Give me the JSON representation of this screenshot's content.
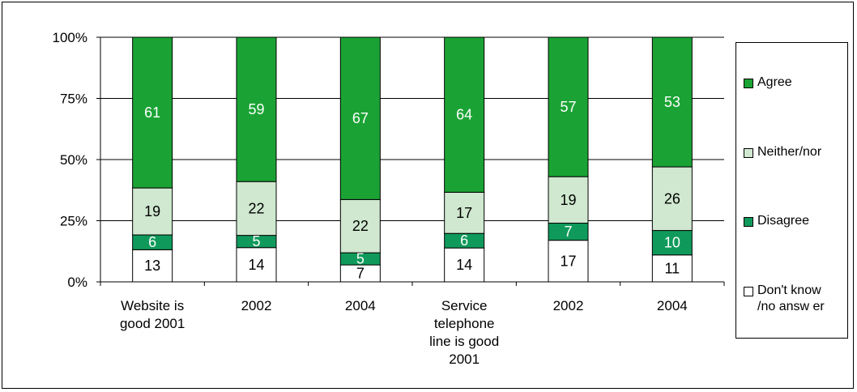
{
  "chart_data": {
    "type": "bar",
    "stacked": true,
    "percent": true,
    "categories": [
      [
        "Website is",
        "good 2001"
      ],
      [
        "2002"
      ],
      [
        "2004"
      ],
      [
        "Service",
        "telephone",
        "line is good",
        "2001"
      ],
      [
        "2002"
      ],
      [
        "2004"
      ]
    ],
    "series": [
      {
        "name": "Don't know /no answ er",
        "color": "#ffffff",
        "label_color": "#000000",
        "values": [
          13,
          14,
          7,
          14,
          17,
          11
        ]
      },
      {
        "name": "Disagree",
        "color": "#0f9a5b",
        "label_color": "#ffffff",
        "values": [
          6,
          5,
          5,
          6,
          7,
          10
        ]
      },
      {
        "name": "Neither/nor",
        "color": "#cfe8cf",
        "label_color": "#000000",
        "values": [
          19,
          22,
          22,
          17,
          19,
          26
        ]
      },
      {
        "name": "Agree",
        "color": "#1aa334",
        "label_color": "#ffffff",
        "values": [
          61,
          59,
          67,
          64,
          57,
          53
        ]
      }
    ],
    "yticks": [
      "0%",
      "25%",
      "50%",
      "75%",
      "100%"
    ],
    "ylim": [
      0,
      100
    ],
    "legend_position": "right",
    "grid": true
  },
  "legend": {
    "items": [
      {
        "label": "Agree",
        "color": "#1aa334"
      },
      {
        "label": "Neither/nor",
        "color": "#cfe8cf"
      },
      {
        "label": "Disagree",
        "color": "#0f9a5b"
      },
      {
        "label": "Don't know /no answ er",
        "color": "#ffffff"
      }
    ]
  }
}
